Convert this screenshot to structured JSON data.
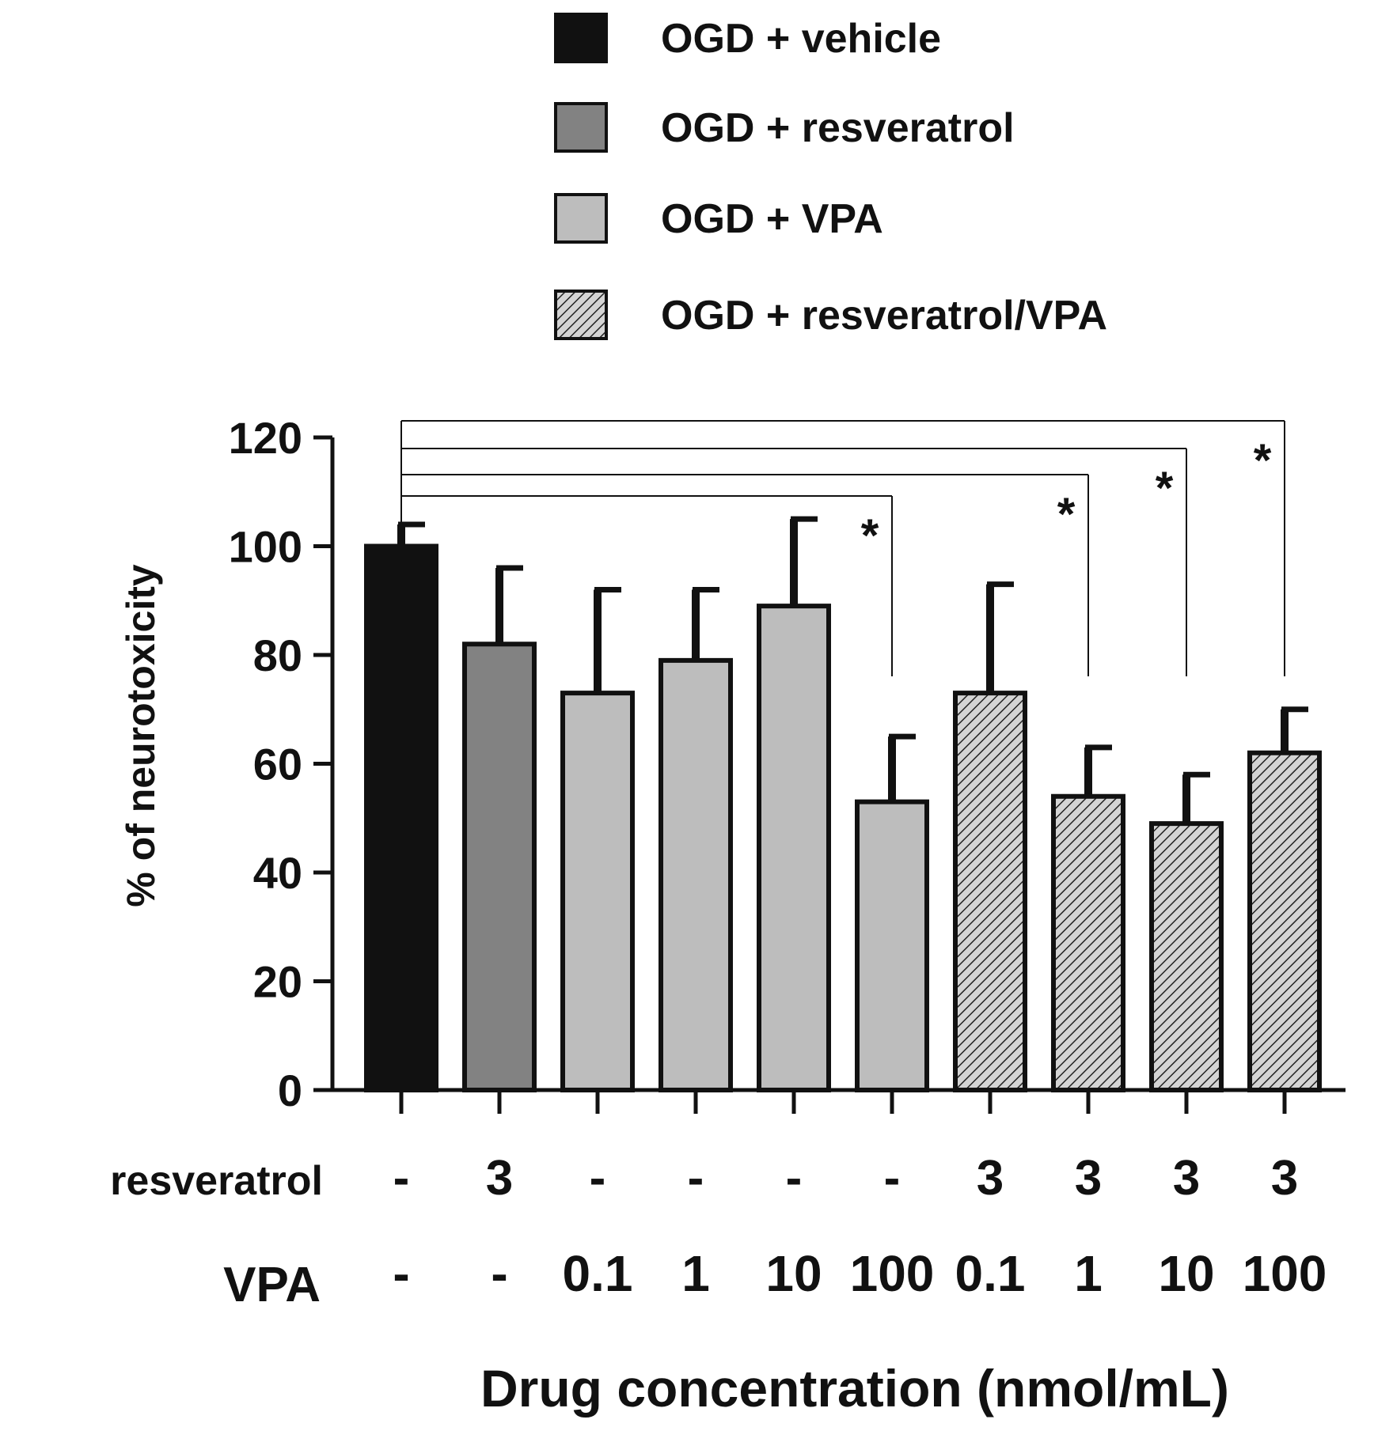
{
  "chart_data": {
    "type": "bar",
    "title": "",
    "ylabel": "% of neurotoxicity",
    "xlabel": "Drug concentration (nmol/mL)",
    "ylim": [
      0,
      120
    ],
    "yticks": [
      0,
      20,
      40,
      60,
      80,
      100,
      120
    ],
    "grid": false,
    "legend_position": "top",
    "legend": [
      {
        "key": "vehicle",
        "label": "OGD + vehicle",
        "color": "#111111",
        "pattern": "solid"
      },
      {
        "key": "resveratrol",
        "label": "OGD + resveratrol",
        "color": "#828282",
        "pattern": "solid"
      },
      {
        "key": "vpa",
        "label": "OGD + VPA",
        "color": "#bdbdbd",
        "pattern": "solid"
      },
      {
        "key": "combo",
        "label": "OGD + resveratrol/VPA",
        "color": "#d4d4d4",
        "pattern": "hatch"
      }
    ],
    "row_labels": {
      "resveratrol": "resveratrol",
      "vpa": "VPA"
    },
    "bars": [
      {
        "group": "vehicle",
        "value": 100,
        "error": 4,
        "resveratrol": "-",
        "vpa": "-"
      },
      {
        "group": "resveratrol",
        "value": 82,
        "error": 14,
        "resveratrol": "3",
        "vpa": "-"
      },
      {
        "group": "vpa",
        "value": 73,
        "error": 19,
        "resveratrol": "-",
        "vpa": "0.1"
      },
      {
        "group": "vpa",
        "value": 79,
        "error": 13,
        "resveratrol": "-",
        "vpa": "1"
      },
      {
        "group": "vpa",
        "value": 89,
        "error": 16,
        "resveratrol": "-",
        "vpa": "10"
      },
      {
        "group": "vpa",
        "value": 53,
        "error": 12,
        "resveratrol": "-",
        "vpa": "100"
      },
      {
        "group": "combo",
        "value": 73,
        "error": 20,
        "resveratrol": "3",
        "vpa": "0.1"
      },
      {
        "group": "combo",
        "value": 54,
        "error": 9,
        "resveratrol": "3",
        "vpa": "1"
      },
      {
        "group": "combo",
        "value": 49,
        "error": 9,
        "resveratrol": "3",
        "vpa": "10"
      },
      {
        "group": "combo",
        "value": 62,
        "error": 8,
        "resveratrol": "3",
        "vpa": "100"
      }
    ],
    "significance": [
      {
        "from": 0,
        "to": 5,
        "label": "*"
      },
      {
        "from": 0,
        "to": 7,
        "label": "*"
      },
      {
        "from": 0,
        "to": 8,
        "label": "*"
      },
      {
        "from": 0,
        "to": 9,
        "label": "*"
      }
    ]
  }
}
